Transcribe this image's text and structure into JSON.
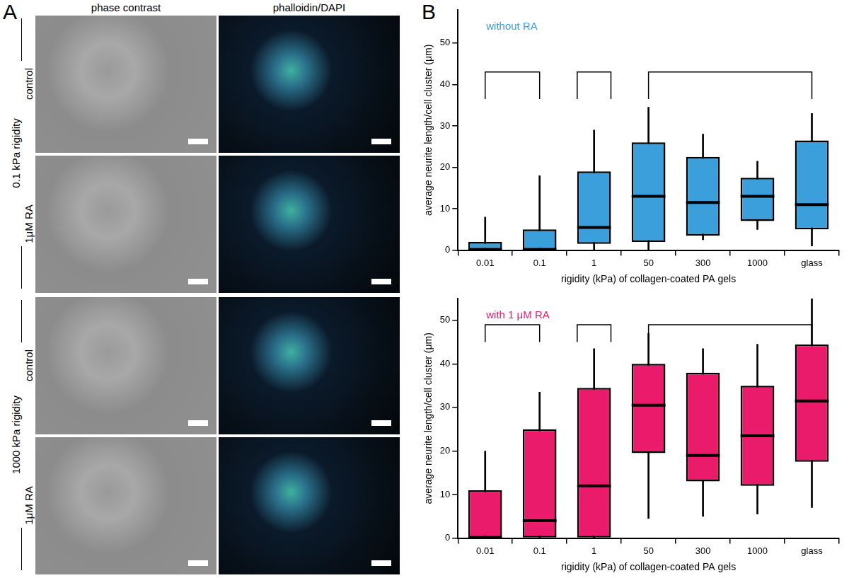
{
  "panel_a": {
    "label": "A",
    "columns": [
      "phase contrast",
      "phalloidin/DAPI"
    ],
    "groups": [
      {
        "label": "0.1 kPa rigidity",
        "rows": [
          "control",
          "1μM RA"
        ]
      },
      {
        "label": "1000 kPa rigidity",
        "rows": [
          "control",
          "1μM RA"
        ]
      }
    ]
  },
  "panel_b_label": "B",
  "chart_data": [
    {
      "type": "box",
      "annotation": "without RA",
      "color": "#3b9fdb",
      "x_label": "rigidity (kPa) of collagen-coated PA gels",
      "y_label": "average neurite length/cell cluster (μm)",
      "categories": [
        "0.01",
        "0.1",
        "1",
        "50",
        "300",
        "1000",
        "glass"
      ],
      "min": [
        0,
        0,
        0,
        0,
        2.5,
        5,
        1
      ],
      "q1": [
        0,
        0,
        1.5,
        2,
        3.5,
        7,
        5
      ],
      "median": [
        0,
        0,
        5.5,
        13,
        11.5,
        13,
        11
      ],
      "q3": [
        2,
        5,
        19,
        26,
        22.5,
        17.5,
        26.5
      ],
      "max": [
        8,
        18,
        29,
        34.5,
        28,
        21.5,
        33
      ],
      "ylim": [
        0,
        58
      ],
      "yticks": [
        0,
        10,
        20,
        30,
        40,
        50
      ],
      "grid": false,
      "brackets": [
        {
          "from": "0.01",
          "to": "0.1",
          "y": 43,
          "leg": 36.5
        },
        {
          "from": "1",
          "to": "1",
          "y": 43,
          "leg": 36.5
        },
        {
          "from": "50",
          "to": "glass",
          "y": 43,
          "leg": 36.5
        }
      ]
    },
    {
      "type": "box",
      "annotation": "with 1 μM RA",
      "color": "#ea1b6b",
      "x_label": "rigidity (kPa) of collagen-coated PA gels",
      "y_label": "average neurite length/cell cluster (μm)",
      "categories": [
        "0.01",
        "0.1",
        "1",
        "50",
        "300",
        "1000",
        "glass"
      ],
      "min": [
        0,
        0,
        0,
        4.5,
        5,
        5.5,
        7
      ],
      "q1": [
        0,
        0,
        0,
        19.5,
        13,
        12,
        17.5
      ],
      "median": [
        0,
        4,
        12,
        30.5,
        19,
        23.5,
        31.5
      ],
      "q3": [
        11,
        25,
        34.5,
        40,
        38,
        35,
        44.5
      ],
      "max": [
        20,
        33.5,
        43.5,
        47,
        43.5,
        44.5,
        57
      ],
      "ylim": [
        0,
        55
      ],
      "yticks": [
        0,
        10,
        20,
        30,
        40,
        50
      ],
      "grid": false,
      "brackets": [
        {
          "from": "0.01",
          "to": "0.1",
          "y": 49,
          "leg": 45
        },
        {
          "from": "1",
          "to": "1",
          "y": 49,
          "leg": 45
        },
        {
          "from": "50",
          "to": "glass",
          "y": 49,
          "leg": 45
        }
      ]
    }
  ]
}
